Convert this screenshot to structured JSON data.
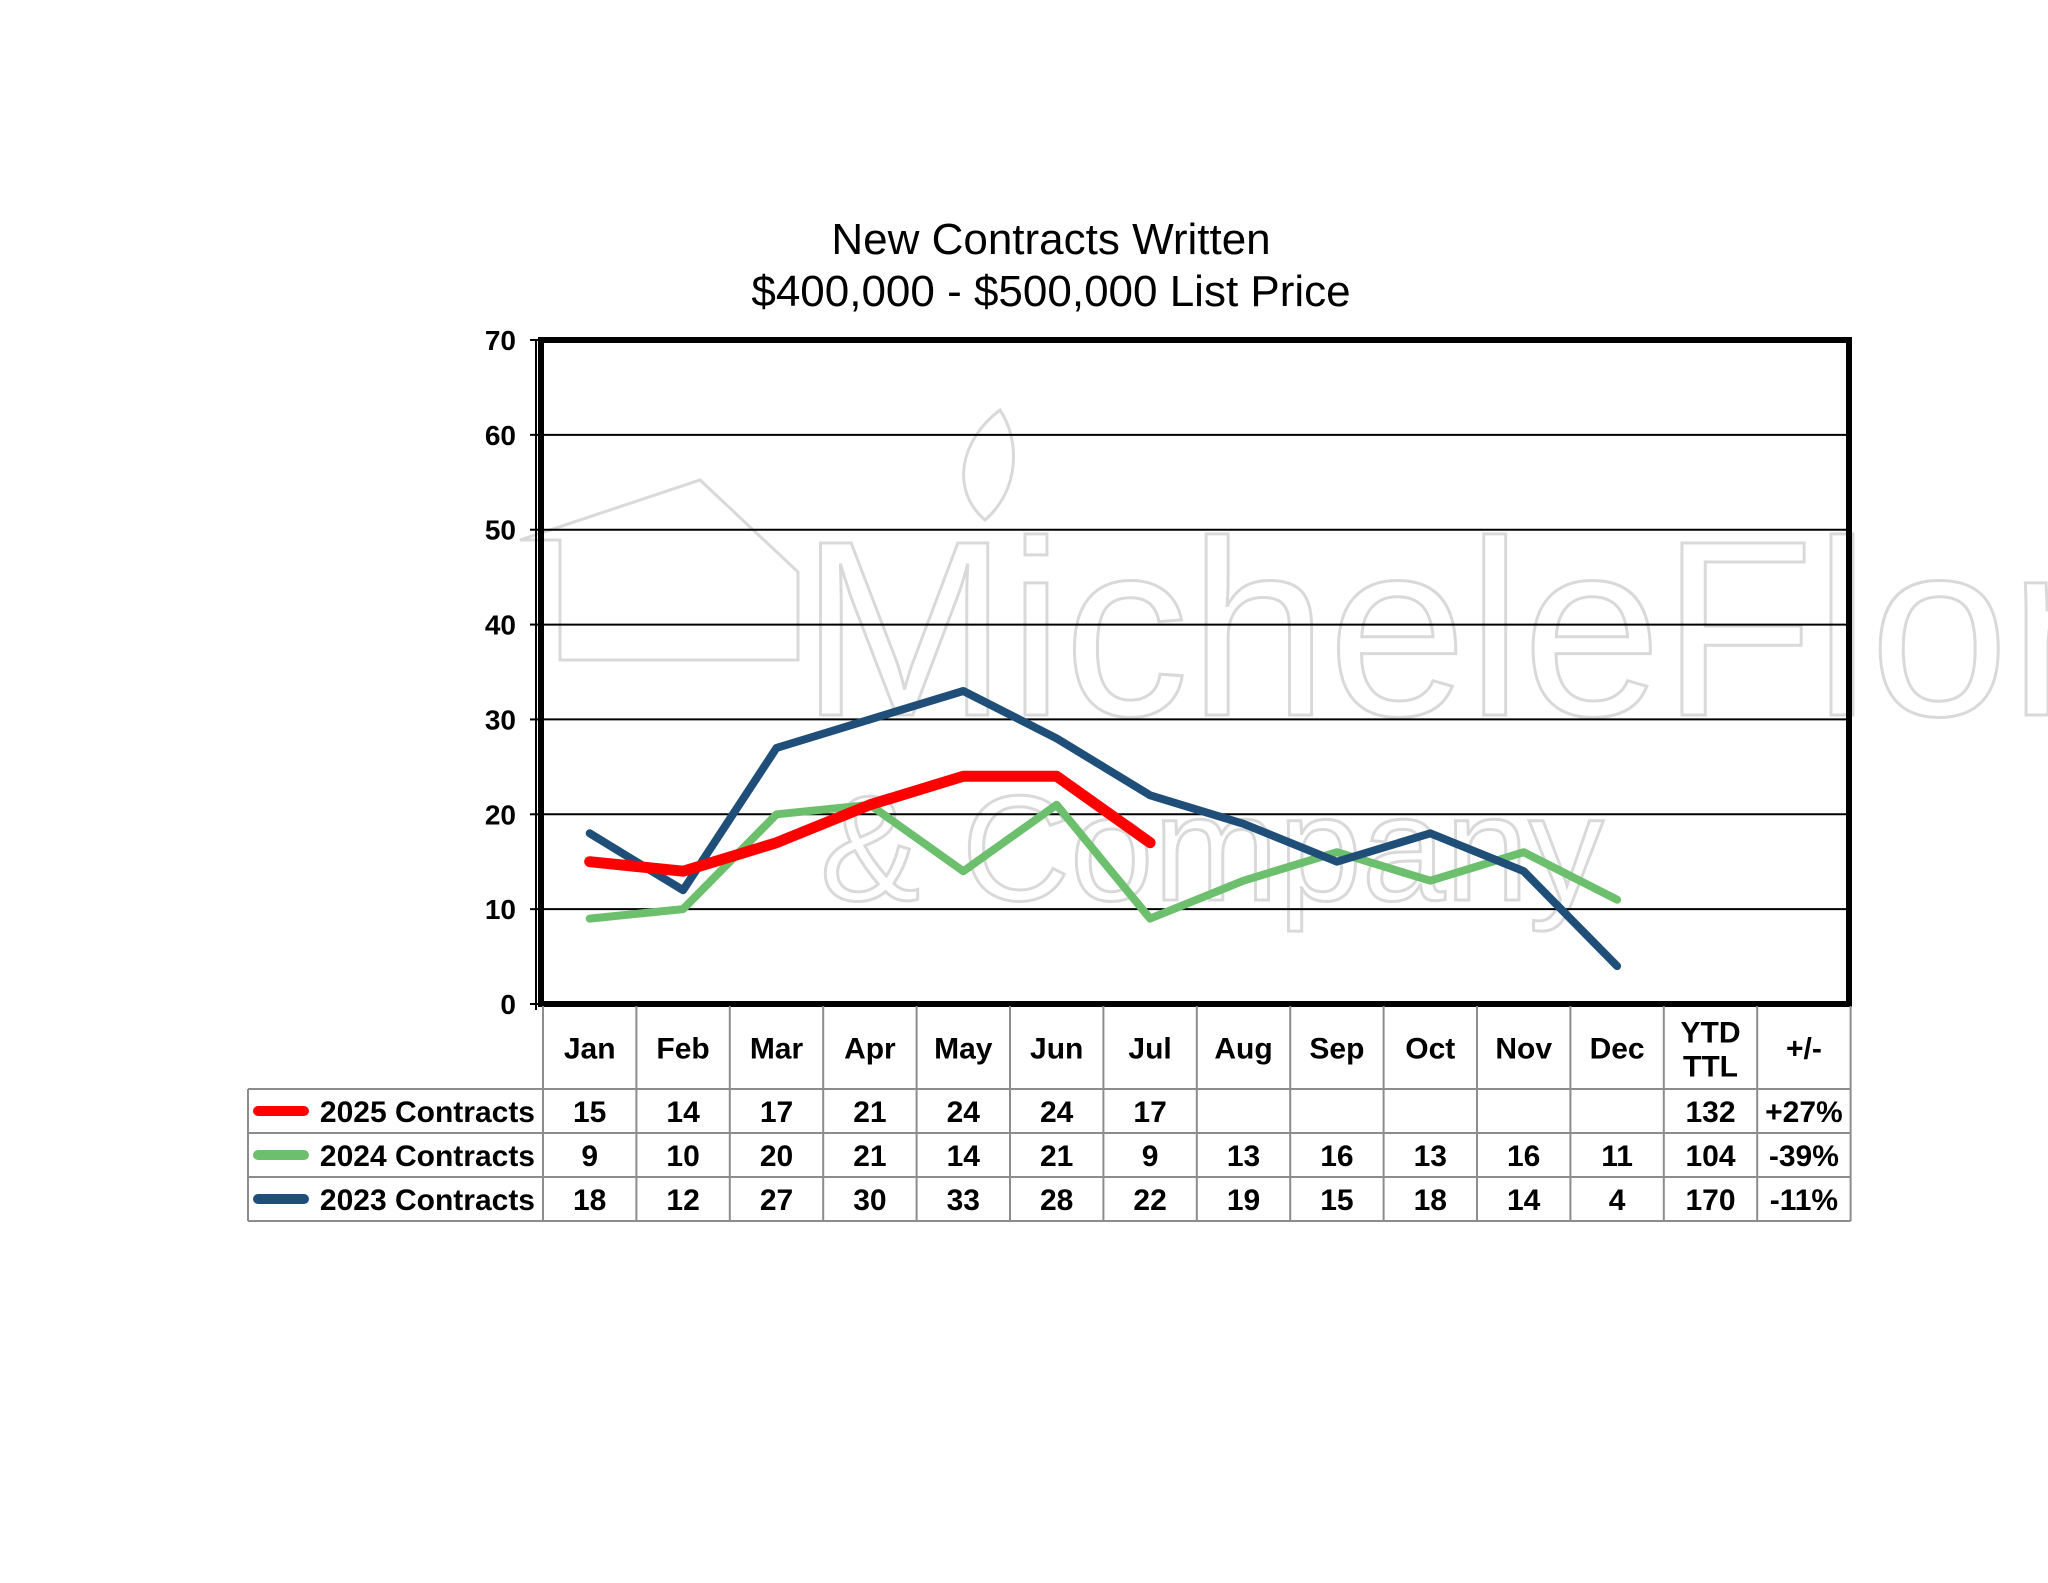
{
  "chart_data": {
    "type": "line",
    "title": "New Contracts Written",
    "subtitle": "$400,000 - $500,000 List Price",
    "xlabel": "",
    "ylabel": "",
    "ylim": [
      0,
      70
    ],
    "yticks": [
      0,
      10,
      20,
      30,
      40,
      50,
      60,
      70
    ],
    "grid": true,
    "categories": [
      "Jan",
      "Feb",
      "Mar",
      "Apr",
      "May",
      "Jun",
      "Jul",
      "Aug",
      "Sep",
      "Oct",
      "Nov",
      "Dec"
    ],
    "extra_headers": [
      {
        "line1": "YTD",
        "line2": "TTL"
      },
      {
        "line1": "+/-",
        "line2": ""
      }
    ],
    "series": [
      {
        "name": "2025 Contracts",
        "color": "#ff0000",
        "values": [
          15,
          14,
          17,
          21,
          24,
          24,
          17,
          null,
          null,
          null,
          null,
          null
        ],
        "ytd": "132",
        "change": "+27%"
      },
      {
        "name": "2024 Contracts",
        "color": "#6cbf6c",
        "values": [
          9,
          10,
          20,
          21,
          14,
          21,
          9,
          13,
          16,
          13,
          16,
          11
        ],
        "ytd": "104",
        "change": "-39%"
      },
      {
        "name": "2023 Contracts",
        "color": "#1f4e79",
        "values": [
          18,
          12,
          27,
          30,
          33,
          28,
          22,
          19,
          15,
          18,
          14,
          4
        ],
        "ytd": "170",
        "change": "-11%"
      }
    ],
    "watermark": {
      "line1": "MicheleFlory",
      "line2": "& Company"
    }
  }
}
